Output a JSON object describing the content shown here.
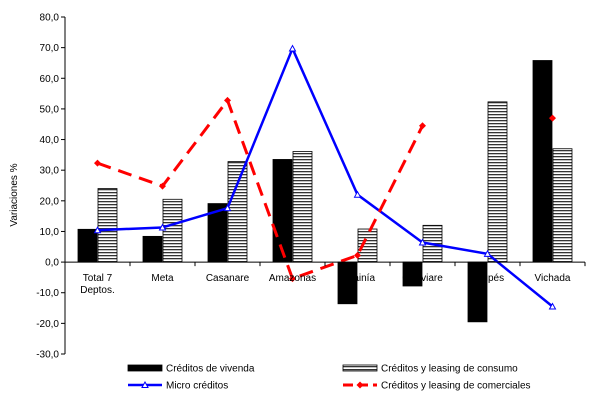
{
  "chart_data": {
    "type": "bar",
    "title": "",
    "xlabel": "",
    "ylabel": "Variaciones %",
    "ylim": [
      -30,
      80
    ],
    "ytick_step": 10,
    "ytick_labels": [
      "-30,0",
      "-20,0",
      "-10,0",
      "0,0",
      "10,0",
      "20,0",
      "30,0",
      "40,0",
      "50,0",
      "60,0",
      "70,0",
      "80,0"
    ],
    "categories": [
      "Total 7\nDeptos.",
      "Meta",
      "Casanare",
      "Amazonas",
      "Guainía",
      "Guaviare",
      "Vaupés",
      "Vichada"
    ],
    "grid": false,
    "legend_position": "bottom",
    "series": [
      {
        "name": "Créditos de vivenda",
        "kind": "bar",
        "color": "#000000",
        "values": [
          10.7,
          8.4,
          19.1,
          33.5,
          -13.6,
          -7.8,
          -19.5,
          65.8
        ]
      },
      {
        "name": "Créditos y leasing de consumo",
        "kind": "bar",
        "color": "#ffffff",
        "pattern": "horizontal-stripes",
        "values": [
          24.0,
          20.5,
          32.8,
          36.1,
          10.8,
          12.0,
          52.3,
          37.0
        ]
      },
      {
        "name": "Micro créditos",
        "kind": "line",
        "color": "#0000ff",
        "marker": "triangle",
        "values": [
          10.4,
          11.3,
          17.6,
          69.7,
          22.0,
          6.4,
          2.7,
          -14.5
        ]
      },
      {
        "name": "Créditos y leasing de comerciales",
        "kind": "line",
        "color": "#ff0000",
        "dash": "dashed",
        "marker": "diamond",
        "values": [
          32.3,
          24.8,
          52.8,
          -5.4,
          2.2,
          44.5,
          null,
          47.0
        ]
      }
    ]
  }
}
